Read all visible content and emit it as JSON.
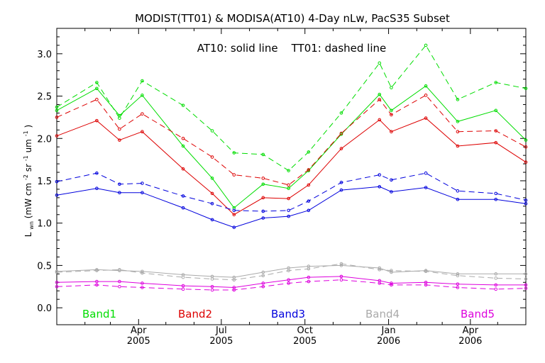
{
  "chart_data": {
    "type": "line",
    "title": "MODIST(TT01) & MODISA(AT10) 4-Day nLw, PacS35 Subset",
    "annotation": "AT10: solid line    TT01: dashed line",
    "ylabel": "L_wn (mW cm^-2 sr^-1 um^-1)",
    "ylabel_main": "L",
    "ylabel_sub": "wn",
    "ylabel_units_a": "(mW cm",
    "ylabel_sup1": "-2",
    "ylabel_units_b": " sr",
    "ylabel_sup2": "-1",
    "ylabel_units_c": " um",
    "ylabel_sup3": "-1",
    "ylabel_units_d": ")",
    "ylim": [
      -0.2,
      3.3
    ],
    "xlim": [
      "2005-01-01",
      "2006-06-01"
    ],
    "yticks": [
      "0.0",
      "0.5",
      "1.0",
      "1.5",
      "2.0",
      "2.5",
      "3.0"
    ],
    "xticks": [
      {
        "month": "Apr",
        "year": "2005",
        "date": "2005-04-01"
      },
      {
        "month": "Jul",
        "year": "2005",
        "date": "2005-07-01"
      },
      {
        "month": "Oct",
        "year": "2005",
        "date": "2005-10-01"
      },
      {
        "month": "Jan",
        "year": "2006",
        "date": "2006-01-01"
      },
      {
        "month": "Apr",
        "year": "2006",
        "date": "2006-04-01"
      }
    ],
    "x": [
      "2005-01-01",
      "2005-02-14",
      "2005-03-11",
      "2005-04-05",
      "2005-05-20",
      "2005-06-21",
      "2005-07-15",
      "2005-08-16",
      "2005-09-13",
      "2005-10-05",
      "2005-11-10",
      "2005-12-22",
      "2006-01-04",
      "2006-02-11",
      "2006-03-18",
      "2006-04-29",
      "2006-06-01"
    ],
    "legend": [
      "Band1",
      "Band2",
      "Band3",
      "Band4",
      "Band5"
    ],
    "series": [
      {
        "name": "Band1",
        "sensor": "AT10",
        "style": "solid",
        "color": "#00dd00",
        "values": [
          2.33,
          2.59,
          2.27,
          2.51,
          1.91,
          1.53,
          1.18,
          1.46,
          1.41,
          1.62,
          2.05,
          2.52,
          2.33,
          2.62,
          2.2,
          2.33,
          1.98
        ]
      },
      {
        "name": "Band1",
        "sensor": "TT01",
        "style": "dashed",
        "color": "#00dd00",
        "values": [
          2.37,
          2.66,
          2.24,
          2.68,
          2.39,
          2.09,
          1.83,
          1.81,
          1.62,
          1.84,
          2.3,
          2.89,
          2.6,
          3.1,
          2.46,
          2.66,
          2.59
        ]
      },
      {
        "name": "Band2",
        "sensor": "AT10",
        "style": "solid",
        "color": "#dd0000",
        "values": [
          2.03,
          2.21,
          1.98,
          2.08,
          1.64,
          1.35,
          1.1,
          1.3,
          1.29,
          1.45,
          1.88,
          2.22,
          2.08,
          2.24,
          1.91,
          1.95,
          1.72
        ]
      },
      {
        "name": "Band2",
        "sensor": "TT01",
        "style": "dashed",
        "color": "#dd0000",
        "values": [
          2.25,
          2.46,
          2.11,
          2.29,
          2.0,
          1.78,
          1.57,
          1.53,
          1.45,
          1.63,
          2.06,
          2.46,
          2.28,
          2.51,
          2.08,
          2.09,
          1.9
        ]
      },
      {
        "name": "Band3",
        "sensor": "AT10",
        "style": "solid",
        "color": "#0000dd",
        "values": [
          1.33,
          1.41,
          1.36,
          1.36,
          1.18,
          1.04,
          0.95,
          1.06,
          1.08,
          1.15,
          1.39,
          1.43,
          1.37,
          1.42,
          1.28,
          1.28,
          1.23
        ]
      },
      {
        "name": "Band3",
        "sensor": "TT01",
        "style": "dashed",
        "color": "#0000dd",
        "values": [
          1.49,
          1.59,
          1.46,
          1.47,
          1.32,
          1.23,
          1.15,
          1.14,
          1.15,
          1.26,
          1.48,
          1.57,
          1.51,
          1.59,
          1.38,
          1.35,
          1.27
        ]
      },
      {
        "name": "Band4",
        "sensor": "AT10",
        "style": "solid",
        "color": "#aaaaaa",
        "values": [
          0.43,
          0.45,
          0.44,
          0.43,
          0.39,
          0.37,
          0.36,
          0.42,
          0.47,
          0.49,
          0.5,
          0.47,
          0.42,
          0.44,
          0.4,
          0.4,
          0.4
        ]
      },
      {
        "name": "Band4",
        "sensor": "TT01",
        "style": "dashed",
        "color": "#aaaaaa",
        "values": [
          0.42,
          0.44,
          0.45,
          0.41,
          0.36,
          0.34,
          0.33,
          0.38,
          0.44,
          0.46,
          0.52,
          0.45,
          0.44,
          0.43,
          0.38,
          0.35,
          0.34
        ]
      },
      {
        "name": "Band5",
        "sensor": "AT10",
        "style": "solid",
        "color": "#dd00dd",
        "values": [
          0.3,
          0.31,
          0.31,
          0.29,
          0.26,
          0.25,
          0.24,
          0.29,
          0.33,
          0.36,
          0.37,
          0.32,
          0.29,
          0.3,
          0.28,
          0.27,
          0.27
        ]
      },
      {
        "name": "Band5",
        "sensor": "TT01",
        "style": "dashed",
        "color": "#dd00dd",
        "values": [
          0.25,
          0.27,
          0.25,
          0.24,
          0.22,
          0.21,
          0.21,
          0.25,
          0.29,
          0.31,
          0.33,
          0.29,
          0.27,
          0.27,
          0.24,
          0.22,
          0.23
        ]
      }
    ]
  }
}
